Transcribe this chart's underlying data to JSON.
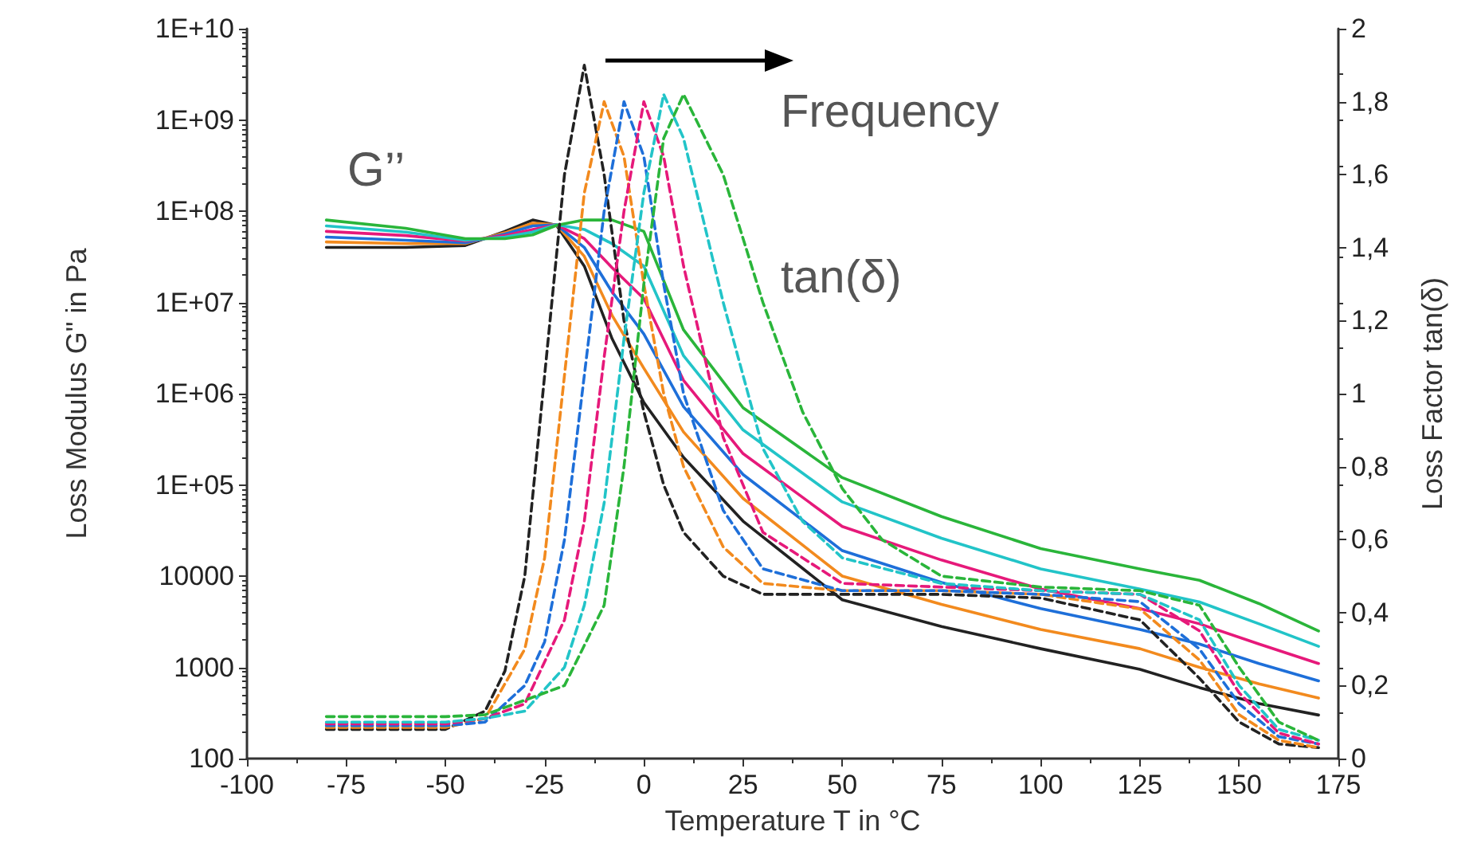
{
  "chart_data": {
    "type": "line",
    "xlabel": "Temperature T in °C",
    "ylabel": "Loss Modulus G\" in Pa",
    "y2label": "Loss Factor tan(δ)",
    "annotations": [
      "G’’",
      "Frequency",
      "tan(δ)"
    ],
    "xlim": [
      -100,
      175
    ],
    "xticks": [
      -100,
      -75,
      -50,
      -25,
      0,
      25,
      50,
      75,
      100,
      125,
      150,
      175
    ],
    "log": "y",
    "ylim": [
      100,
      10000000000
    ],
    "yticks": [
      {
        "value": 100,
        "label": "100"
      },
      {
        "value": 1000,
        "label": "1000"
      },
      {
        "value": 10000,
        "label": "10000"
      },
      {
        "value": 100000,
        "label": "1E+05"
      },
      {
        "value": 1000000,
        "label": "1E+06"
      },
      {
        "value": 10000000,
        "label": "1E+07"
      },
      {
        "value": 100000000,
        "label": "1E+08"
      },
      {
        "value": 1000000000,
        "label": "1E+09"
      },
      {
        "value": 10000000000,
        "label": "1E+10"
      }
    ],
    "y2lim": [
      0,
      2
    ],
    "y2ticks": [
      0,
      {
        "value": 0.2,
        "label": "0,2"
      },
      {
        "value": 0.4,
        "label": "0,4"
      },
      {
        "value": 0.6,
        "label": "0,6"
      },
      {
        "value": 0.8,
        "label": "0,8"
      },
      1,
      {
        "value": 1.2,
        "label": "1,2"
      },
      {
        "value": 1.4,
        "label": "1,4"
      },
      {
        "value": 1.6,
        "label": "1,6"
      },
      {
        "value": 1.8,
        "label": "1,8"
      },
      2
    ],
    "grid": false,
    "marker": "none",
    "x": [
      -80,
      -60,
      -45,
      -35,
      -28,
      -22,
      -15,
      -8,
      0,
      10,
      25,
      50,
      75,
      100,
      125,
      140,
      155,
      170
    ],
    "series": [
      {
        "color": "#222222",
        "line_style": "solid",
        "values": [
          40000000.0,
          40000000.0,
          42000000.0,
          60000000.0,
          80000000.0,
          70000000.0,
          25000000.0,
          4000000.0,
          800000.0,
          200000.0,
          40000.0,
          5500.0,
          2800.0,
          1600.0,
          950,
          600,
          400,
          300
        ]
      },
      {
        "color": "#f28a1e",
        "line_style": "solid",
        "values": [
          46000000.0,
          44000000.0,
          44000000.0,
          58000000.0,
          74000000.0,
          71000000.0,
          32000000.0,
          7200000.0,
          1900000.0,
          380000.0,
          71000.0,
          10000.0,
          4900.0,
          2600.0,
          1600.0,
          1000.0,
          660,
          460
        ]
      },
      {
        "color": "#1e6fd9",
        "line_style": "solid",
        "values": [
          52000000.0,
          48000000.0,
          45000000.0,
          56000000.0,
          69000000.0,
          71000000.0,
          40000000.0,
          13000000.0,
          4500000.0,
          720000.0,
          130000.0,
          19000.0,
          8500.0,
          4400.0,
          2600.0,
          1800.0,
          1100.0,
          710
        ]
      },
      {
        "color": "#e6197a",
        "line_style": "solid",
        "values": [
          60000000.0,
          54000000.0,
          47000000.0,
          54000000.0,
          63000000.0,
          71000000.0,
          50000000.0,
          24000000.0,
          11000000.0,
          1400000.0,
          220000.0,
          35000.0,
          15000.0,
          7200.0,
          4400.0,
          3000.0,
          1800.0,
          1100.0
        ]
      },
      {
        "color": "#22c4c8",
        "line_style": "solid",
        "values": [
          69000000.0,
          59000000.0,
          48000000.0,
          52000000.0,
          59000000.0,
          71000000.0,
          63000000.0,
          44000000.0,
          25000000.0,
          2600000.0,
          400000.0,
          65000.0,
          26000.0,
          12000.0,
          7200.0,
          5200.0,
          3000.0,
          1700.0
        ]
      },
      {
        "color": "#2ab53a",
        "line_style": "solid",
        "values": [
          80000000.0,
          65000000.0,
          50000000.0,
          50000000.0,
          55000000.0,
          70000000.0,
          80000000.0,
          80000000.0,
          60000000.0,
          5000000.0,
          700000.0,
          120000.0,
          45000.0,
          20000.0,
          12000.0,
          9000.0,
          5000.0,
          2500.0
        ]
      },
      {
        "color": "#222222",
        "line_style": "dashed",
        "axis": "y2",
        "x": [
          -80,
          -50,
          -40,
          -35,
          -30,
          -25,
          -20,
          -15,
          -10,
          -5,
          0,
          5,
          10,
          20,
          30,
          50,
          75,
          100,
          125,
          140,
          150,
          160,
          170
        ],
        "values": [
          0.08,
          0.08,
          0.13,
          0.24,
          0.5,
          1.05,
          1.6,
          1.9,
          1.6,
          1.2,
          0.95,
          0.75,
          0.62,
          0.5,
          0.45,
          0.45,
          0.45,
          0.44,
          0.38,
          0.22,
          0.1,
          0.04,
          0.03
        ]
      },
      {
        "color": "#f28a1e",
        "line_style": "dashed",
        "axis": "y2",
        "x": [
          -80,
          -50,
          -40,
          -30,
          -25,
          -20,
          -15,
          -10,
          -5,
          0,
          5,
          10,
          20,
          30,
          50,
          75,
          100,
          125,
          140,
          150,
          160,
          170
        ],
        "values": [
          0.085,
          0.085,
          0.11,
          0.3,
          0.55,
          1.05,
          1.55,
          1.8,
          1.65,
          1.3,
          1.0,
          0.8,
          0.58,
          0.48,
          0.46,
          0.46,
          0.45,
          0.41,
          0.27,
          0.12,
          0.05,
          0.03
        ]
      },
      {
        "color": "#1e6fd9",
        "line_style": "dashed",
        "axis": "y2",
        "x": [
          -80,
          -50,
          -40,
          -30,
          -25,
          -20,
          -15,
          -10,
          -5,
          0,
          5,
          10,
          20,
          30,
          50,
          75,
          100,
          125,
          140,
          150,
          160,
          170
        ],
        "values": [
          0.09,
          0.09,
          0.1,
          0.2,
          0.32,
          0.6,
          1.05,
          1.5,
          1.8,
          1.65,
          1.3,
          1.0,
          0.68,
          0.52,
          0.46,
          0.46,
          0.45,
          0.43,
          0.3,
          0.15,
          0.06,
          0.04
        ]
      },
      {
        "color": "#e6197a",
        "line_style": "dashed",
        "axis": "y2",
        "x": [
          -80,
          -50,
          -40,
          -30,
          -20,
          -15,
          -10,
          -5,
          0,
          5,
          10,
          20,
          30,
          50,
          75,
          100,
          125,
          140,
          150,
          160,
          170
        ],
        "values": [
          0.095,
          0.095,
          0.11,
          0.15,
          0.38,
          0.65,
          1.1,
          1.5,
          1.8,
          1.65,
          1.35,
          0.88,
          0.62,
          0.48,
          0.47,
          0.46,
          0.45,
          0.35,
          0.18,
          0.07,
          0.04
        ]
      },
      {
        "color": "#22c4c8",
        "line_style": "dashed",
        "axis": "y2",
        "x": [
          -80,
          -50,
          -40,
          -30,
          -20,
          -15,
          -10,
          -5,
          0,
          5,
          10,
          20,
          30,
          40,
          50,
          75,
          100,
          125,
          140,
          150,
          160,
          170
        ],
        "values": [
          0.1,
          0.1,
          0.11,
          0.13,
          0.25,
          0.42,
          0.7,
          1.15,
          1.55,
          1.82,
          1.7,
          1.25,
          0.85,
          0.65,
          0.55,
          0.48,
          0.46,
          0.45,
          0.38,
          0.2,
          0.08,
          0.05
        ]
      },
      {
        "color": "#2ab53a",
        "line_style": "dashed",
        "axis": "y2",
        "x": [
          -80,
          -50,
          -40,
          -20,
          -10,
          -5,
          0,
          5,
          10,
          20,
          30,
          40,
          50,
          60,
          75,
          100,
          125,
          140,
          150,
          160,
          170
        ],
        "values": [
          0.115,
          0.115,
          0.12,
          0.2,
          0.42,
          0.8,
          1.3,
          1.7,
          1.82,
          1.6,
          1.25,
          0.95,
          0.74,
          0.6,
          0.5,
          0.47,
          0.46,
          0.42,
          0.25,
          0.1,
          0.05
        ]
      }
    ]
  }
}
